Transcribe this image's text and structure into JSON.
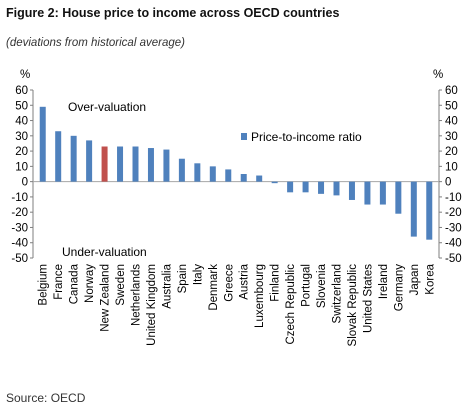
{
  "figure": {
    "title": "Figure 2: House price to income across OECD countries",
    "subtitle": "(deviations from historical average)",
    "source": "Source: OECD"
  },
  "chart_data": {
    "type": "bar",
    "y_unit_left": "%",
    "y_unit_right": "%",
    "ylim": [
      -50,
      60
    ],
    "yticks": [
      60,
      50,
      40,
      30,
      20,
      10,
      0,
      -10,
      -20,
      -30,
      -40,
      -50
    ],
    "grid": false,
    "legend": {
      "position": "right",
      "entries": [
        "Price-to-income ratio"
      ]
    },
    "annotations": {
      "over": "Over-valuation",
      "under": "Under-valuation"
    },
    "colors": {
      "series": "#4f81bd",
      "highlight": "#c0504d",
      "zero_line": "#a6a6a6"
    },
    "highlight_category": "New Zealand",
    "categories": [
      "Belgium",
      "France",
      "Canada",
      "Norway",
      "New Zealand",
      "Sweden",
      "Netherlands",
      "United Kingdom",
      "Australia",
      "Spain",
      "Italy",
      "Denmark",
      "Greece",
      "Austria",
      "Luxembourg",
      "Finland",
      "Czech Republic",
      "Portugal",
      "Slovenia",
      "Switzerland",
      "Slovak Republic",
      "United States",
      "Ireland",
      "Germany",
      "Japan",
      "Korea"
    ],
    "series": [
      {
        "name": "Price-to-income ratio",
        "values": [
          49,
          33,
          30,
          27,
          23,
          23,
          23,
          22,
          21,
          15,
          12,
          10,
          8,
          5,
          4,
          -1,
          -7,
          -7,
          -8,
          -9,
          -12,
          -15,
          -15,
          -21,
          -36,
          -38
        ]
      }
    ]
  }
}
